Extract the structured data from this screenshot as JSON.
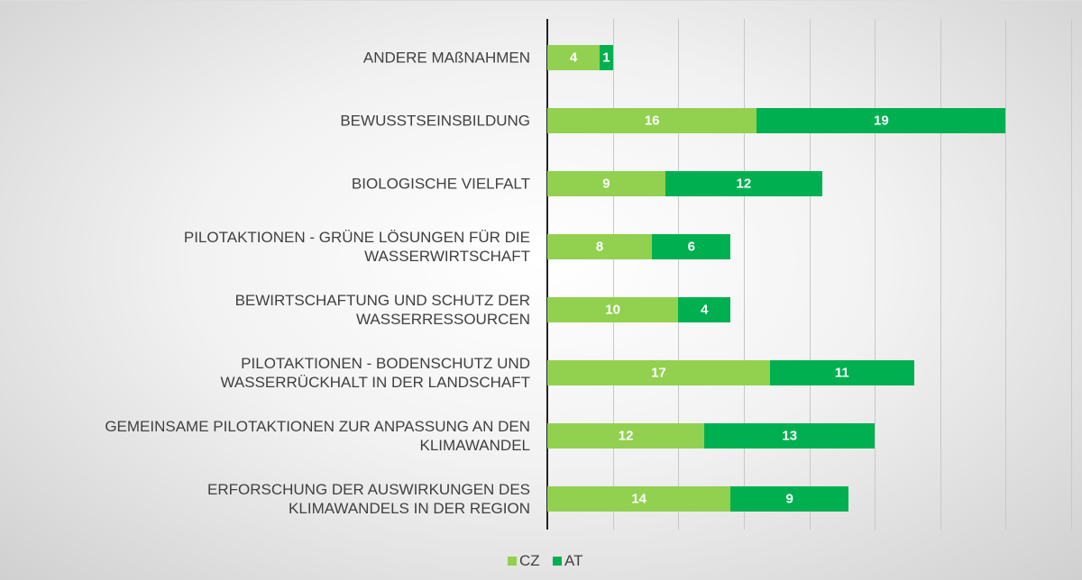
{
  "chart_data": {
    "type": "stacked-barh",
    "categories": [
      "ANDERE MAßNAHMEN",
      "BEWUSSTSEINSBILDUNG",
      "BIOLOGISCHE VIELFALT",
      "PILOTAKTIONEN - GRÜNE LÖSUNGEN FÜR DIE\nWASSERWIRTSCHAFT",
      "BEWIRTSCHAFTUNG UND SCHUTZ DER\nWASSERRESSOURCEN",
      "PILOTAKTIONEN - BODENSCHUTZ UND\nWASSERRÜCKHALT IN DER LANDSCHAFT",
      "GEMEINSAME PILOTAKTIONEN ZUR ANPASSUNG AN DEN\nKLIMAWANDEL",
      "ERFORSCHUNG DER AUSWIRKUNGEN DES\nKLIMAWANDELS IN DER REGION"
    ],
    "series": [
      {
        "name": "CZ",
        "color": "#92d050",
        "values": [
          4,
          16,
          9,
          8,
          10,
          17,
          12,
          14
        ]
      },
      {
        "name": "AT",
        "color": "#00b050",
        "values": [
          1,
          19,
          12,
          6,
          4,
          11,
          13,
          9
        ]
      }
    ],
    "xlim": [
      0,
      40
    ],
    "xticks": [
      0,
      5,
      10,
      15,
      20,
      25,
      30,
      35,
      40
    ],
    "grid": true,
    "legend": "bottom"
  }
}
